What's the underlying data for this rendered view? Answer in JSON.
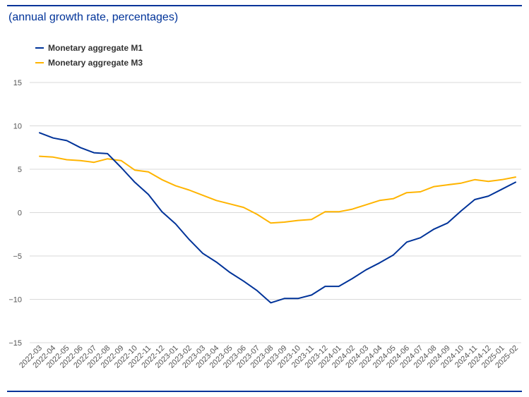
{
  "colors": {
    "rule": "#003399",
    "m1": "#003399",
    "m3": "#FFB400",
    "grid": "#d9d9d9",
    "text": "#555555"
  },
  "chart_data": {
    "type": "line",
    "title": "",
    "subtitle": "(annual growth rate, percentages)",
    "xlabel": "",
    "ylabel": "",
    "ylim": [
      -15,
      15
    ],
    "yticks": [
      15,
      10,
      5,
      0,
      -5,
      -10,
      -15
    ],
    "ytick_labels": [
      "15",
      "10",
      "5",
      "0",
      "−5",
      "−10",
      "−15"
    ],
    "grid": true,
    "legend_position": "top-left",
    "categories": [
      "2022-03",
      "2022-04",
      "2022-05",
      "2022-06",
      "2022-07",
      "2022-08",
      "2022-09",
      "2022-10",
      "2022-11",
      "2022-12",
      "2023-01",
      "2023-02",
      "2023-03",
      "2023-04",
      "2023-05",
      "2023-06",
      "2023-07",
      "2023-08",
      "2023-09",
      "2023-10",
      "2023-11",
      "2023-12",
      "2024-01",
      "2024-02",
      "2024-03",
      "2024-04",
      "2024-05",
      "2024-06",
      "2024-07",
      "2024-08",
      "2024-09",
      "2024-10",
      "2024-11",
      "2024-12",
      "2025-01",
      "2025-02"
    ],
    "series": [
      {
        "name": "Monetary aggregate M1",
        "color": "#003399",
        "values": [
          9.2,
          8.6,
          8.3,
          7.5,
          6.9,
          6.8,
          5.2,
          3.5,
          2.1,
          0.1,
          -1.3,
          -3.1,
          -4.7,
          -5.7,
          -6.9,
          -7.9,
          -9.0,
          -10.4,
          -9.9,
          -9.9,
          -9.5,
          -8.5,
          -8.5,
          -7.6,
          -6.6,
          -5.8,
          -4.9,
          -3.4,
          -2.9,
          -1.9,
          -1.2,
          0.2,
          1.5,
          1.9,
          2.7,
          3.5
        ]
      },
      {
        "name": "Monetary aggregate M3",
        "color": "#FFB400",
        "values": [
          6.5,
          6.4,
          6.1,
          6.0,
          5.8,
          6.2,
          6.0,
          4.9,
          4.7,
          3.8,
          3.1,
          2.6,
          2.0,
          1.4,
          1.0,
          0.6,
          -0.2,
          -1.2,
          -1.1,
          -0.9,
          -0.8,
          0.1,
          0.1,
          0.4,
          0.9,
          1.4,
          1.6,
          2.3,
          2.4,
          3.0,
          3.2,
          3.4,
          3.8,
          3.6,
          3.8,
          4.1
        ]
      }
    ]
  }
}
